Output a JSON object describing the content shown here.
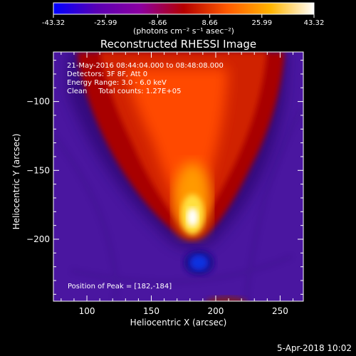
{
  "chart_data": {
    "type": "heatmap",
    "title": "Reconstructed RHESSI Image",
    "xlabel": "Heliocentric X (arcsec)",
    "ylabel": "Heliocentric Y (arcsec)",
    "xlim": [
      74,
      268
    ],
    "ylim": [
      -245,
      -64
    ],
    "xticks": [
      100,
      150,
      200,
      250
    ],
    "yticks": [
      -100,
      -150,
      -200
    ],
    "colorbar": {
      "units": "(photons cm⁻² s⁻¹ asec⁻²)",
      "min": -43.32,
      "max": 43.32,
      "ticks": [
        "-43.32",
        "-25.99",
        "-8.66",
        "8.66",
        "25.99",
        "43.32"
      ],
      "colors": [
        "#0000ff",
        "#5a00b4",
        "#8c00a0",
        "#b40000",
        "#ff5a00",
        "#ffb400",
        "#ffffff"
      ]
    },
    "annotations": [
      "21-May-2016 08:44:04.000 to 08:48:08.000",
      "Detectors: 3F 8F, Att 0",
      "Energy Range: 3.0 - 6.0 keV",
      "Clean     Total counts: 1.27E+05"
    ],
    "peak": {
      "x": 182,
      "y": -184,
      "value": 43.32
    },
    "negative_source": {
      "x": 187,
      "y": -217,
      "value": -43.32
    },
    "peak_label": "Position of Peak = [182,-184]",
    "footer_date": "5-Apr-2018 10:02"
  }
}
